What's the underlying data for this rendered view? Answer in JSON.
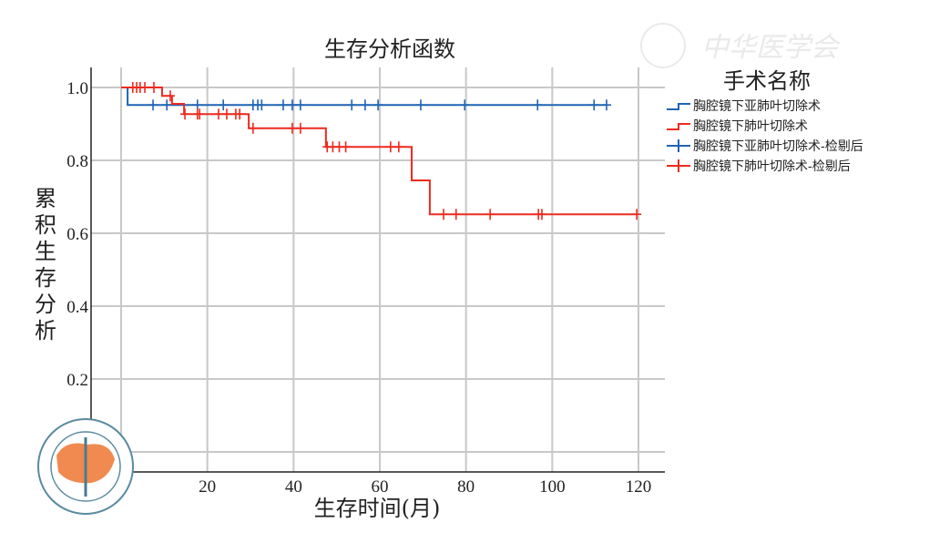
{
  "chart_data": {
    "type": "line",
    "subtype": "kaplan-meier",
    "title": "生存分析函数",
    "xlabel": "生存时间(月)",
    "ylabel": "累积生存分析",
    "xlim": [
      0,
      120
    ],
    "ylim": [
      0,
      1.0
    ],
    "xticks": [
      "0",
      "20",
      "40",
      "60",
      "80",
      "100",
      "120"
    ],
    "yticks": [
      "0.0",
      "0.2",
      "0.4",
      "0.6",
      "0.8",
      "1.0"
    ],
    "grid": true,
    "legend": {
      "title": "手术名称",
      "placement": "right",
      "entries": [
        "胸腔镜下亚肺叶切除术",
        "胸腔镜下肺叶切除术",
        "胸腔镜下亚肺叶切除术-检剔后",
        "胸腔镜下肺叶切除术-检剔后"
      ]
    },
    "series": [
      {
        "name": "胸腔镜下亚肺叶切除术",
        "color": "#1f64b4",
        "steps": [
          [
            0,
            1.0
          ],
          [
            1.5,
            0.952
          ],
          [
            112.6,
            0.952
          ]
        ],
        "censored": [
          7.4,
          10.6,
          17.7,
          23.7,
          30.6,
          31.7,
          32.6,
          37.6,
          39.7,
          41.6,
          53.5,
          56.6,
          59.6,
          69.5,
          79.7,
          96.6,
          109.7,
          112.6
        ]
      },
      {
        "name": "胸腔镜下肺叶切除术",
        "color": "#ee2a1e",
        "steps": [
          [
            0,
            1.0
          ],
          [
            9.5,
            0.977
          ],
          [
            11.8,
            0.955
          ],
          [
            14.6,
            0.927
          ],
          [
            29.6,
            0.888
          ],
          [
            47.5,
            0.837
          ],
          [
            67.4,
            0.745
          ],
          [
            71.6,
            0.652
          ],
          [
            119.6,
            0.652
          ]
        ],
        "censored": [
          2.7,
          3.6,
          4.4,
          5.5,
          7.6,
          11.4,
          14.8,
          17.7,
          18.2,
          22.6,
          24.5,
          26.6,
          27.5,
          30.6,
          39.7,
          41.6,
          47.8,
          49.1,
          50.6,
          52.1,
          62.5,
          64.4,
          74.8,
          77.7,
          85.6,
          96.8,
          97.6,
          119.6
        ]
      }
    ]
  },
  "watermark": {
    "text": "中华医学会",
    "logo_text": "CHINESE MEDICAL ASSOCIATION 1915"
  }
}
